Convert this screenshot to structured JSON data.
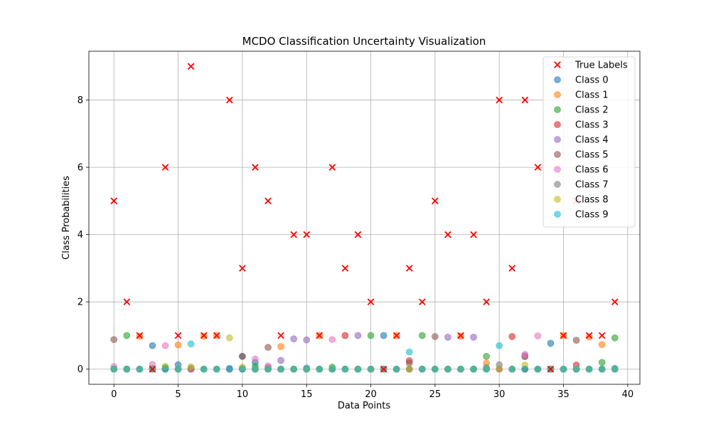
{
  "chart_data": {
    "type": "scatter",
    "title": "MCDO Classification Uncertainty Visualization",
    "xlabel": "Data Points",
    "ylabel": "Class Probabilities",
    "xlim": [
      -1.95,
      40.95
    ],
    "ylim": [
      -0.45,
      9.45
    ],
    "xticks": [
      0,
      5,
      10,
      15,
      20,
      25,
      30,
      35,
      40
    ],
    "yticks": [
      0,
      2,
      4,
      6,
      8
    ],
    "grid": true,
    "legend_position": "top-right",
    "true_labels": {
      "name": "True Labels",
      "color": "#ff0000",
      "x": [
        0,
        1,
        2,
        3,
        4,
        5,
        6,
        7,
        8,
        9,
        10,
        11,
        12,
        13,
        14,
        15,
        16,
        17,
        18,
        19,
        20,
        21,
        22,
        23,
        24,
        25,
        26,
        27,
        28,
        29,
        30,
        31,
        32,
        33,
        34,
        35,
        36,
        37,
        38,
        39
      ],
      "values": [
        5,
        2,
        1,
        0,
        6,
        1,
        9,
        1,
        1,
        8,
        3,
        6,
        5,
        1,
        4,
        4,
        1,
        6,
        3,
        4,
        2,
        0,
        1,
        3,
        2,
        5,
        4,
        1,
        4,
        2,
        8,
        3,
        8,
        6,
        0,
        1,
        5,
        1,
        1,
        2
      ]
    },
    "series": [
      {
        "name": "Class 0",
        "color": "#1f77b4",
        "values": [
          0.01,
          0.0,
          0.0,
          0.7,
          0.02,
          0.13,
          0.0,
          0.0,
          0.0,
          0.02,
          0.38,
          0.2,
          0.0,
          0.0,
          0.0,
          0.03,
          0.0,
          0.0,
          0.0,
          0.0,
          0.0,
          1.0,
          0.0,
          0.0,
          0.0,
          0.0,
          0.0,
          0.0,
          0.0,
          0.0,
          0.0,
          0.0,
          0.0,
          0.0,
          0.77,
          0.0,
          0.0,
          0.0,
          0.0,
          0.02
        ]
      },
      {
        "name": "Class 1",
        "color": "#ff7f0e",
        "values": [
          0.0,
          0.0,
          0.98,
          0.0,
          0.0,
          0.72,
          0.0,
          0.98,
          1.0,
          0.0,
          0.05,
          0.0,
          0.0,
          0.67,
          0.0,
          0.0,
          1.0,
          0.0,
          0.0,
          0.0,
          0.0,
          0.0,
          1.0,
          0.0,
          0.0,
          0.0,
          0.0,
          0.98,
          0.0,
          0.18,
          0.0,
          0.0,
          0.0,
          0.0,
          0.0,
          1.0,
          0.0,
          0.96,
          0.73,
          0.0
        ]
      },
      {
        "name": "Class 2",
        "color": "#2ca02c",
        "values": [
          0.0,
          1.0,
          0.0,
          0.0,
          0.05,
          0.0,
          0.0,
          0.0,
          0.0,
          0.0,
          0.0,
          0.08,
          0.0,
          0.0,
          0.0,
          0.0,
          0.0,
          0.06,
          0.0,
          0.0,
          1.0,
          0.0,
          0.0,
          0.0,
          1.0,
          0.0,
          0.0,
          0.0,
          0.0,
          0.38,
          0.0,
          0.0,
          0.0,
          0.0,
          0.0,
          0.0,
          0.0,
          0.0,
          0.2,
          0.93
        ]
      },
      {
        "name": "Class 3",
        "color": "#d62728",
        "values": [
          0.0,
          0.0,
          0.0,
          0.02,
          0.0,
          0.0,
          0.0,
          0.0,
          0.0,
          0.0,
          0.0,
          0.0,
          0.05,
          0.0,
          0.0,
          0.0,
          0.0,
          0.0,
          1.0,
          0.0,
          0.0,
          0.0,
          0.0,
          0.25,
          0.0,
          0.0,
          0.0,
          0.0,
          0.0,
          0.0,
          0.0,
          0.97,
          0.0,
          0.0,
          0.0,
          0.0,
          0.12,
          0.0,
          0.0,
          0.0
        ]
      },
      {
        "name": "Class 4",
        "color": "#9467bd",
        "values": [
          0.0,
          0.0,
          0.0,
          0.0,
          0.0,
          0.0,
          0.0,
          0.0,
          0.0,
          0.0,
          0.0,
          0.0,
          0.0,
          0.26,
          0.9,
          0.87,
          0.0,
          0.0,
          0.0,
          1.0,
          0.0,
          0.0,
          0.0,
          0.0,
          0.0,
          0.0,
          0.95,
          0.0,
          0.95,
          0.0,
          0.0,
          0.0,
          0.4,
          0.0,
          0.0,
          0.0,
          0.0,
          0.0,
          0.0,
          0.0
        ]
      },
      {
        "name": "Class 5",
        "color": "#8c564b",
        "values": [
          0.88,
          0.0,
          0.0,
          0.0,
          0.0,
          0.0,
          0.0,
          0.0,
          0.0,
          0.0,
          0.38,
          0.0,
          0.65,
          0.0,
          0.0,
          0.0,
          0.0,
          0.0,
          0.0,
          0.0,
          0.0,
          0.0,
          0.0,
          0.18,
          0.0,
          0.97,
          0.0,
          0.0,
          0.0,
          0.0,
          0.0,
          0.0,
          0.37,
          0.0,
          0.0,
          0.0,
          0.86,
          0.0,
          0.0,
          0.0
        ]
      },
      {
        "name": "Class 6",
        "color": "#e377c2",
        "values": [
          0.08,
          0.0,
          0.0,
          0.14,
          0.7,
          0.0,
          0.0,
          0.0,
          0.0,
          0.0,
          0.0,
          0.3,
          0.1,
          0.0,
          0.0,
          0.0,
          0.0,
          0.88,
          0.0,
          0.0,
          0.0,
          0.0,
          0.0,
          0.0,
          0.0,
          0.0,
          0.0,
          0.0,
          0.0,
          0.0,
          0.0,
          0.0,
          0.44,
          0.99,
          0.0,
          0.0,
          0.0,
          0.0,
          0.0,
          0.0
        ]
      },
      {
        "name": "Class 7",
        "color": "#7f7f7f",
        "values": [
          0.0,
          0.0,
          0.0,
          0.0,
          0.0,
          0.0,
          0.03,
          0.0,
          0.0,
          0.0,
          0.0,
          0.0,
          0.0,
          0.0,
          0.0,
          0.0,
          0.0,
          0.0,
          0.0,
          0.0,
          0.0,
          0.0,
          0.0,
          0.0,
          0.0,
          0.0,
          0.0,
          0.0,
          0.0,
          0.05,
          0.13,
          0.0,
          0.0,
          0.0,
          0.0,
          0.0,
          0.0,
          0.0,
          0.0,
          0.0
        ]
      },
      {
        "name": "Class 8",
        "color": "#bcbd22",
        "values": [
          0.0,
          0.0,
          0.0,
          0.0,
          0.08,
          0.0,
          0.07,
          0.0,
          0.0,
          0.93,
          0.05,
          0.0,
          0.0,
          0.0,
          0.0,
          0.0,
          0.0,
          0.0,
          0.0,
          0.0,
          0.0,
          0.0,
          0.0,
          0.0,
          0.0,
          0.0,
          0.0,
          0.0,
          0.0,
          0.0,
          0.0,
          0.0,
          0.12,
          0.0,
          0.0,
          0.0,
          0.0,
          0.0,
          0.0,
          0.0
        ]
      },
      {
        "name": "Class 9",
        "color": "#17becf",
        "values": [
          0.0,
          0.0,
          0.0,
          0.0,
          0.0,
          0.0,
          0.75,
          0.0,
          0.0,
          0.0,
          0.0,
          0.0,
          0.0,
          0.0,
          0.0,
          0.0,
          0.0,
          0.0,
          0.0,
          0.0,
          0.0,
          0.0,
          0.0,
          0.51,
          0.0,
          0.0,
          0.0,
          0.0,
          0.0,
          0.0,
          0.7,
          0.0,
          0.0,
          0.0,
          0.0,
          0.0,
          0.0,
          0.0,
          0.0,
          0.0
        ]
      }
    ]
  }
}
